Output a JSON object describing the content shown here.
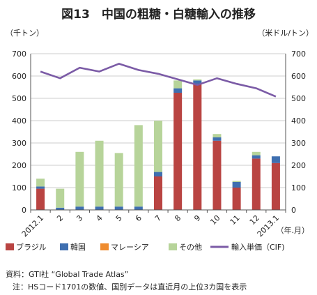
{
  "page_title": "図13　中国の粗糖・白糖輸入の推移",
  "source_line": "資料：GTI社 “Global Trade Atlas”",
  "note_line": "注：HSコード1701の数値、国別データは直近月の上位3カ国を表示",
  "chart_data": {
    "type": "bar",
    "title": "",
    "left_unit": "（千トン）",
    "right_unit": "（米ドル/トン）",
    "x_axis_unit": "（年.月）",
    "categories": [
      "2012.1",
      "2",
      "3",
      "4",
      "5",
      "6",
      "7",
      "8",
      "9",
      "10",
      "11",
      "12",
      "2013.1"
    ],
    "ylim": [
      0,
      700
    ],
    "y_ticks": [
      0,
      100,
      200,
      300,
      400,
      500,
      600,
      700
    ],
    "y2lim": [
      0,
      700
    ],
    "y2_ticks": [
      0,
      100,
      200,
      300,
      400,
      500,
      600,
      700
    ],
    "grid": true,
    "legend_position": "bottom",
    "stacked": true,
    "series": [
      {
        "name": "ブラジル",
        "color": "#b94442",
        "values": [
          95,
          0,
          0,
          0,
          0,
          0,
          150,
          525,
          565,
          310,
          100,
          230,
          210
        ]
      },
      {
        "name": "韓国",
        "color": "#3f6fb0",
        "values": [
          10,
          10,
          15,
          15,
          15,
          15,
          20,
          20,
          15,
          15,
          25,
          15,
          30
        ]
      },
      {
        "name": "マレーシア",
        "color": "#ef8c2f",
        "values": [
          0,
          0,
          0,
          0,
          0,
          0,
          0,
          0,
          0,
          0,
          0,
          0,
          0
        ]
      },
      {
        "name": "その他",
        "color": "#b7d49a",
        "values": [
          35,
          85,
          245,
          295,
          240,
          365,
          230,
          35,
          5,
          15,
          5,
          15,
          0
        ]
      }
    ],
    "line_series": {
      "name": "輸入単価（CIF)",
      "color": "#7b5ba6",
      "axis": "right",
      "values": [
        620,
        590,
        637,
        620,
        655,
        627,
        610,
        585,
        560,
        590,
        565,
        545,
        508
      ]
    }
  }
}
